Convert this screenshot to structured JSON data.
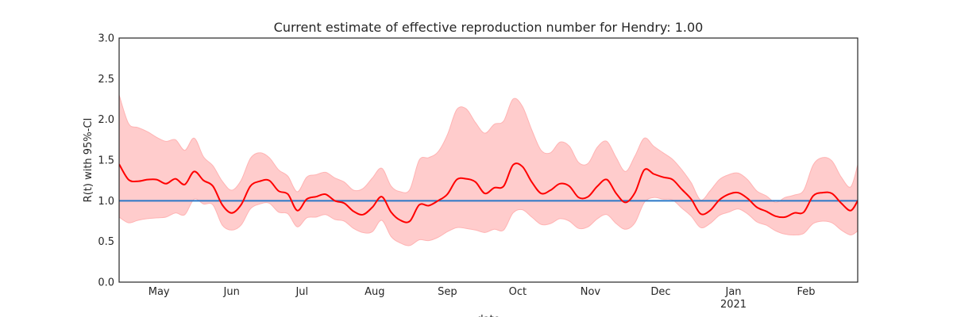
{
  "chart_data": {
    "type": "area",
    "title": "Current estimate of effective reproduction number for Hendry: 1.00",
    "xlabel": "date",
    "ylabel": "R(t) with 95%-CI",
    "ylim": [
      0,
      3
    ],
    "xlim": [
      "2020-04-14",
      "2021-02-23"
    ],
    "yticks": [
      "0.0",
      "0.5",
      "1.0",
      "1.5",
      "2.0",
      "2.5",
      "3.0"
    ],
    "xticks": [
      {
        "date": "2020-05-01",
        "label": "May",
        "sublabel": ""
      },
      {
        "date": "2020-06-01",
        "label": "Jun",
        "sublabel": ""
      },
      {
        "date": "2020-07-01",
        "label": "Jul",
        "sublabel": ""
      },
      {
        "date": "2020-08-01",
        "label": "Aug",
        "sublabel": ""
      },
      {
        "date": "2020-09-01",
        "label": "Sep",
        "sublabel": ""
      },
      {
        "date": "2020-10-01",
        "label": "Oct",
        "sublabel": ""
      },
      {
        "date": "2020-11-01",
        "label": "Nov",
        "sublabel": ""
      },
      {
        "date": "2020-12-01",
        "label": "Dec",
        "sublabel": ""
      },
      {
        "date": "2021-01-01",
        "label": "Jan",
        "sublabel": "2021"
      },
      {
        "date": "2021-02-01",
        "label": "Feb",
        "sublabel": ""
      }
    ],
    "reference_line": {
      "y": 1.0,
      "color": "#2a77c7"
    },
    "grid": false,
    "colors": {
      "estimate": "#ff0000",
      "ci_fill": "#ffcccc",
      "ci_edge": "#ffb3b3"
    },
    "series": [
      {
        "x": [
          "2020-04-14",
          "2020-04-18",
          "2020-04-22",
          "2020-04-26",
          "2020-04-30",
          "2020-05-04",
          "2020-05-08",
          "2020-05-12",
          "2020-05-16",
          "2020-05-20",
          "2020-05-24",
          "2020-05-28",
          "2020-06-01",
          "2020-06-05",
          "2020-06-09",
          "2020-06-13",
          "2020-06-17",
          "2020-06-21",
          "2020-06-25",
          "2020-06-29",
          "2020-07-03",
          "2020-07-07",
          "2020-07-11",
          "2020-07-15",
          "2020-07-19",
          "2020-07-23",
          "2020-07-27",
          "2020-07-31",
          "2020-08-04",
          "2020-08-08",
          "2020-08-12",
          "2020-08-16",
          "2020-08-20",
          "2020-08-24",
          "2020-08-28",
          "2020-09-01",
          "2020-09-05",
          "2020-09-09",
          "2020-09-13",
          "2020-09-17",
          "2020-09-21",
          "2020-09-25",
          "2020-09-29",
          "2020-10-03",
          "2020-10-07",
          "2020-10-11",
          "2020-10-15",
          "2020-10-19",
          "2020-10-23",
          "2020-10-27",
          "2020-10-31",
          "2020-11-04",
          "2020-11-08",
          "2020-11-12",
          "2020-11-16",
          "2020-11-20",
          "2020-11-24",
          "2020-11-28",
          "2020-12-02",
          "2020-12-06",
          "2020-12-10",
          "2020-12-14",
          "2020-12-18",
          "2020-12-22",
          "2020-12-26",
          "2020-12-30",
          "2021-01-03",
          "2021-01-07",
          "2021-01-11",
          "2021-01-15",
          "2021-01-19",
          "2021-01-23",
          "2021-01-27",
          "2021-01-31",
          "2021-02-04",
          "2021-02-08",
          "2021-02-12",
          "2021-02-16",
          "2021-02-20",
          "2021-02-23"
        ],
        "y": [
          1.45,
          1.26,
          1.24,
          1.26,
          1.26,
          1.21,
          1.27,
          1.2,
          1.36,
          1.25,
          1.18,
          0.95,
          0.85,
          0.95,
          1.18,
          1.24,
          1.25,
          1.12,
          1.08,
          0.88,
          1.02,
          1.05,
          1.08,
          1.0,
          0.97,
          0.87,
          0.83,
          0.92,
          1.05,
          0.86,
          0.76,
          0.75,
          0.95,
          0.94,
          1.0,
          1.08,
          1.26,
          1.27,
          1.23,
          1.09,
          1.16,
          1.18,
          1.44,
          1.42,
          1.23,
          1.09,
          1.13,
          1.21,
          1.18,
          1.04,
          1.05,
          1.18,
          1.26,
          1.09,
          0.98,
          1.1,
          1.38,
          1.33,
          1.29,
          1.26,
          1.14,
          1.02,
          0.84,
          0.88,
          1.01,
          1.08,
          1.1,
          1.03,
          0.92,
          0.87,
          0.81,
          0.8,
          0.85,
          0.86,
          1.06,
          1.1,
          1.09,
          0.97,
          0.88,
          1.0
        ],
        "lower": [
          0.8,
          0.73,
          0.76,
          0.78,
          0.79,
          0.8,
          0.85,
          0.83,
          1.02,
          0.96,
          0.95,
          0.7,
          0.64,
          0.7,
          0.9,
          0.96,
          0.97,
          0.86,
          0.84,
          0.68,
          0.79,
          0.8,
          0.83,
          0.77,
          0.75,
          0.66,
          0.61,
          0.62,
          0.76,
          0.56,
          0.48,
          0.45,
          0.52,
          0.51,
          0.55,
          0.62,
          0.67,
          0.66,
          0.64,
          0.61,
          0.65,
          0.64,
          0.85,
          0.89,
          0.8,
          0.71,
          0.72,
          0.78,
          0.75,
          0.66,
          0.68,
          0.78,
          0.83,
          0.72,
          0.65,
          0.73,
          0.98,
          1.04,
          1.02,
          1.01,
          0.91,
          0.81,
          0.67,
          0.72,
          0.82,
          0.86,
          0.9,
          0.84,
          0.74,
          0.7,
          0.63,
          0.59,
          0.58,
          0.6,
          0.72,
          0.75,
          0.73,
          0.64,
          0.58,
          0.63
        ],
        "upper": [
          2.3,
          1.95,
          1.9,
          1.85,
          1.78,
          1.73,
          1.75,
          1.62,
          1.77,
          1.54,
          1.43,
          1.24,
          1.13,
          1.25,
          1.52,
          1.59,
          1.53,
          1.38,
          1.3,
          1.11,
          1.29,
          1.32,
          1.35,
          1.28,
          1.23,
          1.13,
          1.15,
          1.28,
          1.4,
          1.18,
          1.11,
          1.14,
          1.5,
          1.53,
          1.6,
          1.81,
          2.12,
          2.13,
          1.96,
          1.83,
          1.94,
          1.98,
          2.25,
          2.16,
          1.87,
          1.62,
          1.59,
          1.72,
          1.67,
          1.47,
          1.46,
          1.66,
          1.73,
          1.53,
          1.36,
          1.55,
          1.77,
          1.67,
          1.59,
          1.51,
          1.38,
          1.22,
          1.01,
          1.12,
          1.26,
          1.32,
          1.34,
          1.26,
          1.12,
          1.06,
          0.98,
          1.04,
          1.07,
          1.13,
          1.44,
          1.53,
          1.49,
          1.29,
          1.17,
          1.44
        ]
      }
    ]
  }
}
